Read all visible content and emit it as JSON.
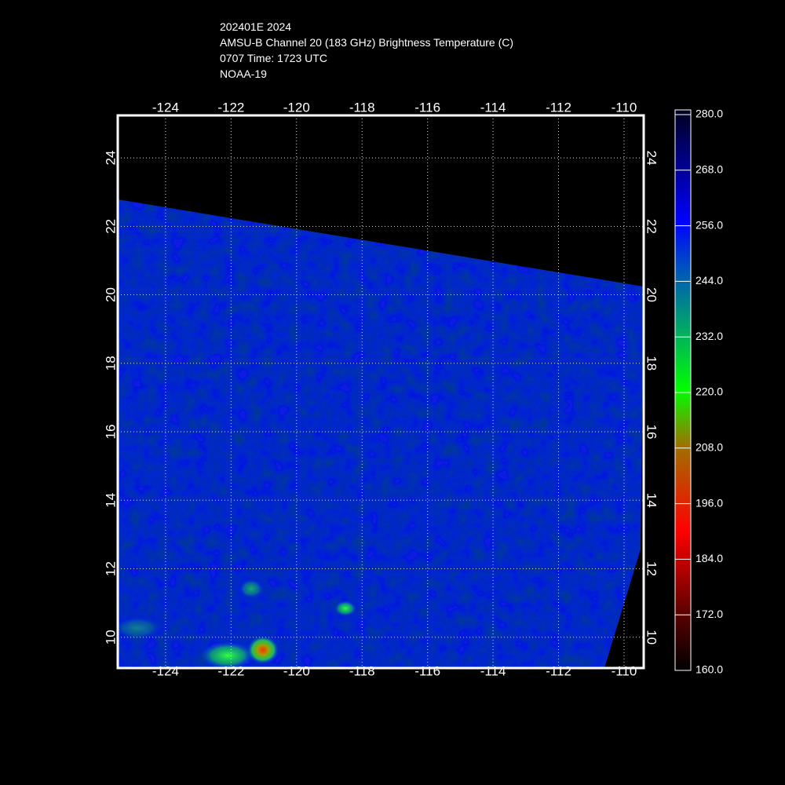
{
  "map": {
    "title": [
      "202401E 2024",
      "AMSU-B Channel 20 (183 GHz) Brightness Temperature (C)",
      "0707 Time: 1723 UTC",
      "NOAA-19"
    ],
    "lonlim": [
      -125.46,
      -109.4
    ],
    "latlim": [
      9.1,
      25.24
    ],
    "lonticks": [
      -124,
      -122,
      -120,
      -118,
      -116,
      -114,
      -112,
      -110
    ],
    "latticks": [
      10,
      12,
      14,
      16,
      18,
      20,
      22,
      24
    ],
    "grid": true,
    "colorbar": {
      "range": [
        160,
        280
      ],
      "ticks": [
        {
          "value": 280,
          "label": "280.0"
        },
        {
          "value": 268,
          "label": "268.0"
        },
        {
          "value": 256,
          "label": "256.0"
        },
        {
          "value": 244,
          "label": "244.0"
        },
        {
          "value": 232,
          "label": "232.0"
        },
        {
          "value": 220,
          "label": "220.0"
        },
        {
          "value": 208,
          "label": "208.0"
        },
        {
          "value": 196,
          "label": "196.0"
        },
        {
          "value": 184,
          "label": "184.0"
        },
        {
          "value": 172,
          "label": "172.0"
        },
        {
          "value": 160,
          "label": "160.0"
        }
      ]
    }
  }
}
